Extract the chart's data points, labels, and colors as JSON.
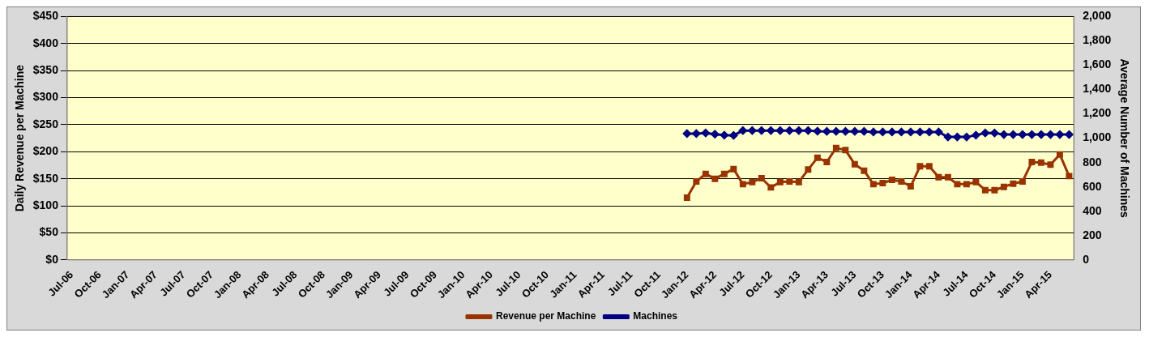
{
  "chart_data": {
    "type": "line",
    "xlabel": null,
    "ylabel": "Daily Revenue per Machine",
    "y2label": "Average Number of Machines",
    "categories": [
      "Jul-06",
      null,
      null,
      "Oct-06",
      null,
      null,
      "Jan-07",
      null,
      null,
      "Apr-07",
      null,
      null,
      "Jul-07",
      null,
      null,
      "Oct-07",
      null,
      null,
      "Jan-08",
      null,
      null,
      "Apr-08",
      null,
      null,
      "Jul-08",
      null,
      null,
      "Oct-08",
      null,
      null,
      "Jan-09",
      null,
      null,
      "Apr-09",
      null,
      null,
      "Jul-09",
      null,
      null,
      "Oct-09",
      null,
      null,
      "Jan-10",
      null,
      null,
      "Apr-10",
      null,
      null,
      "Jul-10",
      null,
      null,
      "Oct-10",
      null,
      null,
      "Jan-11",
      null,
      null,
      "Apr-11",
      null,
      null,
      "Jul-11",
      null,
      null,
      "Oct-11",
      null,
      null,
      "Jan-12",
      null,
      null,
      "Apr-12",
      null,
      null,
      "Jul-12",
      null,
      null,
      "Oct-12",
      null,
      null,
      "Jan-13",
      null,
      null,
      "Apr-13",
      null,
      null,
      "Jul-13",
      null,
      null,
      "Oct-13",
      null,
      null,
      "Jan-14",
      null,
      null,
      "Apr-14",
      null,
      null,
      "Jul-14",
      null,
      null,
      "Oct-14",
      null,
      null,
      "Jan-15",
      null,
      null,
      "Apr-15",
      null,
      null
    ],
    "series": [
      {
        "name": "Revenue per Machine",
        "color": "#993300",
        "marker": "square",
        "values": [
          null,
          null,
          null,
          null,
          null,
          null,
          null,
          null,
          null,
          null,
          null,
          null,
          null,
          null,
          null,
          null,
          null,
          null,
          null,
          null,
          null,
          null,
          null,
          null,
          null,
          null,
          null,
          null,
          null,
          null,
          null,
          null,
          null,
          null,
          null,
          null,
          null,
          null,
          null,
          null,
          null,
          null,
          null,
          null,
          null,
          null,
          null,
          null,
          null,
          null,
          null,
          null,
          null,
          null,
          null,
          null,
          null,
          null,
          null,
          null,
          null,
          null,
          null,
          null,
          null,
          null,
          115,
          145,
          159,
          150,
          159,
          168,
          140,
          144,
          151,
          134,
          144,
          145,
          144,
          167,
          189,
          181,
          207,
          203,
          177,
          165,
          140,
          142,
          148,
          145,
          136,
          173,
          173,
          153,
          153,
          140,
          140,
          144,
          129,
          129,
          135,
          141,
          145,
          181,
          180,
          176,
          195,
          155
        ]
      },
      {
        "name": "Machines",
        "color": "#000080",
        "marker": "diamond",
        "axis": "y2",
        "values": [
          null,
          null,
          null,
          null,
          null,
          null,
          null,
          null,
          null,
          null,
          null,
          null,
          null,
          null,
          null,
          null,
          null,
          null,
          null,
          null,
          null,
          null,
          null,
          null,
          null,
          null,
          null,
          null,
          null,
          null,
          null,
          null,
          null,
          null,
          null,
          null,
          null,
          null,
          null,
          null,
          null,
          null,
          null,
          null,
          null,
          null,
          null,
          null,
          null,
          null,
          null,
          null,
          null,
          null,
          null,
          null,
          null,
          null,
          null,
          null,
          null,
          null,
          null,
          null,
          null,
          null,
          1038,
          1038,
          1043,
          1033,
          1025,
          1023,
          1063,
          1063,
          1063,
          1063,
          1063,
          1063,
          1063,
          1063,
          1058,
          1056,
          1056,
          1056,
          1056,
          1056,
          1051,
          1051,
          1051,
          1051,
          1051,
          1051,
          1051,
          1051,
          1010,
          1010,
          1010,
          1025,
          1043,
          1043,
          1030,
          1030,
          1030,
          1030,
          1030,
          1030,
          1030,
          1030
        ]
      }
    ],
    "ylim": [
      0,
      450
    ],
    "yticks": [
      {
        "value": 0,
        "label": "$0"
      },
      {
        "value": 50,
        "label": "$50"
      },
      {
        "value": 100,
        "label": "$100"
      },
      {
        "value": 150,
        "label": "$150"
      },
      {
        "value": 200,
        "label": "$200"
      },
      {
        "value": 250,
        "label": "$250"
      },
      {
        "value": 300,
        "label": "$300"
      },
      {
        "value": 350,
        "label": "$350"
      },
      {
        "value": 400,
        "label": "$400"
      },
      {
        "value": 450,
        "label": "$450"
      }
    ],
    "y2lim": [
      0,
      2000
    ],
    "y2ticks": [
      0,
      200,
      400,
      600,
      800,
      {
        "value": 1000,
        "label": "1,000"
      },
      {
        "value": 1200,
        "label": "1,200"
      },
      {
        "value": 1400,
        "label": "1,400"
      },
      {
        "value": 1600,
        "label": "1,600"
      },
      {
        "value": 1800,
        "label": "1,800"
      },
      {
        "value": 2000,
        "label": "2,000"
      }
    ],
    "grid": "y",
    "legend": "bottom",
    "line_style": "solid"
  }
}
